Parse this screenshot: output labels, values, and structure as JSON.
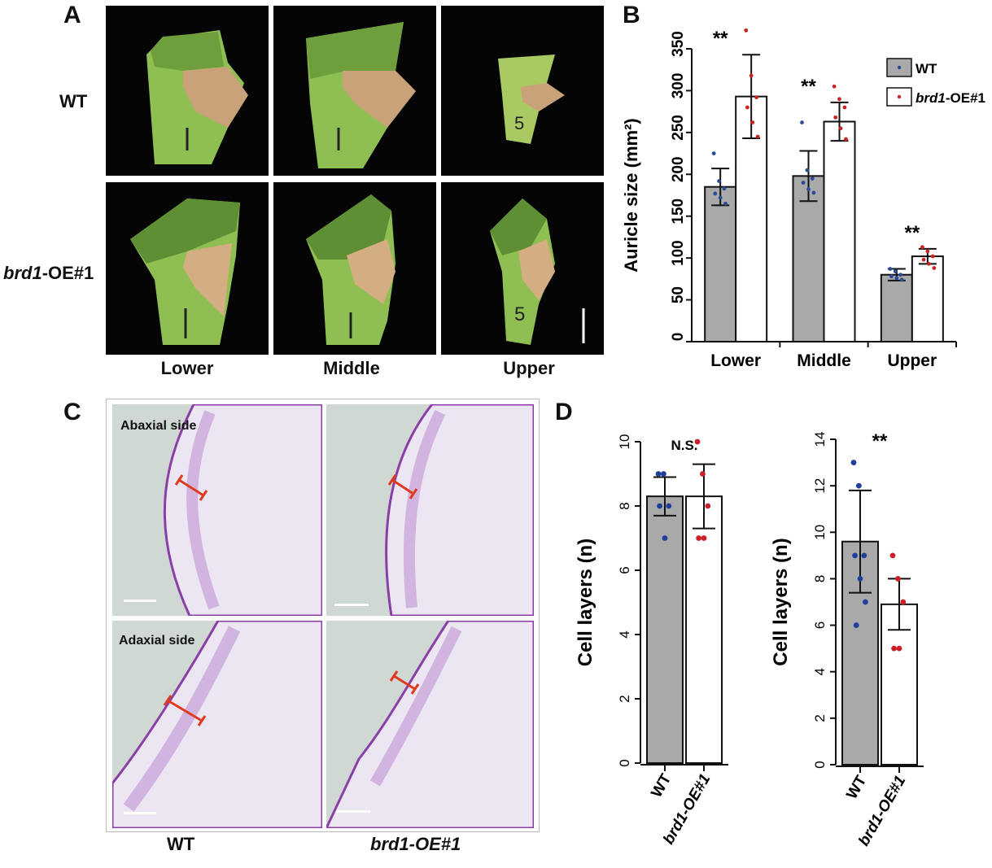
{
  "panelA": {
    "letter": "A",
    "rows": [
      "WT",
      "brd1-OE#1"
    ],
    "row1_italic": "brd1",
    "row1_rest": "-OE#1",
    "columns": [
      "Lower",
      "Middle",
      "Upper"
    ],
    "sheath_marks": [
      "1",
      "1",
      "5",
      "1",
      "1",
      "5"
    ]
  },
  "panelB": {
    "letter": "B",
    "significance": [
      "**",
      "**",
      "**"
    ],
    "legend": [
      {
        "name": "WT",
        "fill": "#a9a9a9",
        "dot": "#2a4a9a"
      },
      {
        "name_italic": "brd1",
        "name_rest": "-OE#1",
        "fill": "#ffffff",
        "dot": "#cc2222"
      }
    ]
  },
  "panelC": {
    "letter": "C",
    "top_label": "Abaxial side",
    "bottom_label": "Adaxial side",
    "columns": [
      "WT",
      "brd1-OE#1"
    ]
  },
  "panelD": {
    "letter": "D",
    "left_significance": "N.S.",
    "right_significance": "**"
  },
  "chart_data": [
    {
      "type": "bar",
      "categories": [
        "Lower",
        "Middle",
        "Upper"
      ],
      "ylabel": "Auricle size (mm²)",
      "ylim": [
        0,
        350
      ],
      "yticks": [
        0,
        50,
        100,
        150,
        200,
        250,
        300,
        350
      ],
      "series": [
        {
          "name": "WT",
          "values": [
            185,
            198,
            80
          ],
          "errors": [
            22,
            30,
            7
          ],
          "points": [
            [
              225,
              192,
              183,
              177,
              172,
              165
            ],
            [
              262,
              205,
              195,
              190,
              182,
              178
            ],
            [
              87,
              84,
              80,
              78,
              76,
              74
            ]
          ]
        },
        {
          "name": "brd1-OE#1",
          "values": [
            293,
            263,
            102
          ],
          "errors": [
            50,
            23,
            9
          ],
          "points": [
            [
              372,
              318,
              292,
              280,
              262,
              245
            ],
            [
              305,
              290,
              280,
              268,
              255,
              242
            ],
            [
              113,
              108,
              102,
              98,
              93,
              88
            ]
          ]
        }
      ],
      "annotations": [
        "**",
        "**",
        "**"
      ]
    },
    {
      "type": "bar",
      "categories": [
        "WT",
        "brd1-OE#1"
      ],
      "ylabel": "Cell layers (n)",
      "ylim": [
        0,
        10
      ],
      "yticks": [
        0,
        2,
        4,
        6,
        8,
        10
      ],
      "values": [
        8.3,
        8.3
      ],
      "errors": [
        0.6,
        1.0
      ],
      "points": [
        [
          9,
          9,
          8,
          8,
          7
        ],
        [
          10,
          9,
          8,
          7,
          7
        ]
      ],
      "annotations": [
        "N.S."
      ]
    },
    {
      "type": "bar",
      "categories": [
        "WT",
        "brd1-OE#1"
      ],
      "ylabel": "Cell layers (n)",
      "ylim": [
        0,
        14
      ],
      "yticks": [
        0,
        2,
        4,
        6,
        8,
        10,
        12,
        14
      ],
      "values": [
        9.6,
        6.9
      ],
      "errors": [
        2.2,
        1.1
      ],
      "points": [
        [
          13,
          12,
          9,
          9,
          8,
          7,
          6
        ],
        [
          9,
          8,
          7,
          5,
          5
        ]
      ],
      "annotations": [
        "**"
      ]
    }
  ]
}
